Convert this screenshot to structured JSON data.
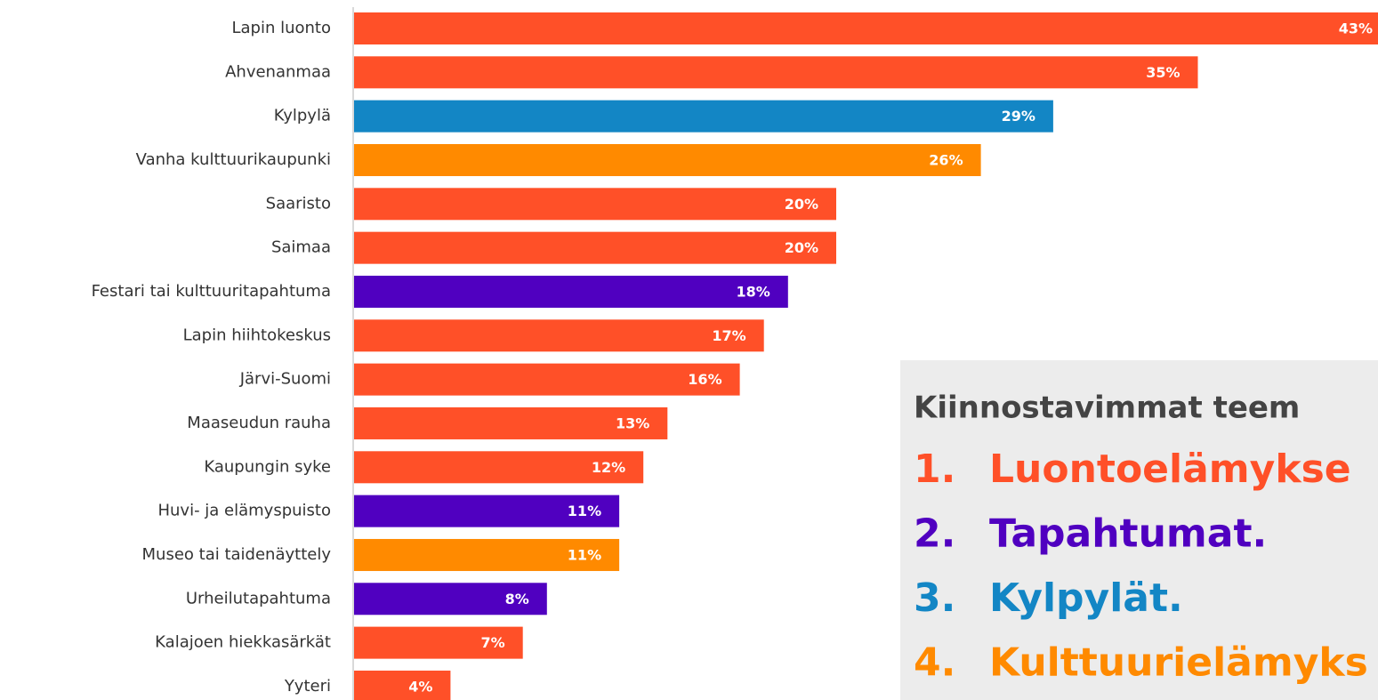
{
  "chart_data": {
    "type": "bar",
    "orientation": "horizontal",
    "categories": [
      "Lapin luonto",
      "Ahvenanmaa",
      "Kylpylä",
      "Vanha kulttuurikaupunki",
      "Saaristo",
      "Saimaa",
      "Festari tai kulttuuritapahtuma",
      "Lapin hiihtokeskus",
      "Järvi-Suomi",
      "Maaseudun rauha",
      "Kaupungin syke",
      "Huvi- ja elämyspuisto",
      "Museo tai taidenäyttely",
      "Urheilutapahtuma",
      "Kalajoen hiekkasärkät",
      "Yyteri"
    ],
    "values": [
      43,
      35,
      29,
      26,
      20,
      20,
      18,
      17,
      16,
      13,
      12,
      11,
      11,
      8,
      7,
      4
    ],
    "value_labels": [
      "43%",
      "35%",
      "29%",
      "26%",
      "20%",
      "20%",
      "18%",
      "17%",
      "16%",
      "13%",
      "12%",
      "11%",
      "11%",
      "8%",
      "7%",
      "4%"
    ],
    "colors": [
      "#ff5028",
      "#ff5028",
      "#1386c5",
      "#ff8a00",
      "#ff5028",
      "#ff5028",
      "#5000c0",
      "#ff5028",
      "#ff5028",
      "#ff5028",
      "#ff5028",
      "#5000c0",
      "#ff8a00",
      "#5000c0",
      "#ff5028",
      "#ff5028"
    ],
    "box_title": "Kiinnostavimmat teem",
    "box_items": [
      {
        "number": "1.",
        "text": "Luontoelämykse",
        "color": "#ff5028"
      },
      {
        "number": "2.",
        "text": "Tapahtumat.",
        "color": "#5000c0"
      },
      {
        "number": "3.",
        "text": "Kylpylät.",
        "color": "#1386c5"
      },
      {
        "number": "4.",
        "text": "Kulttuurielämyks",
        "color": "#ff8a00"
      }
    ]
  }
}
